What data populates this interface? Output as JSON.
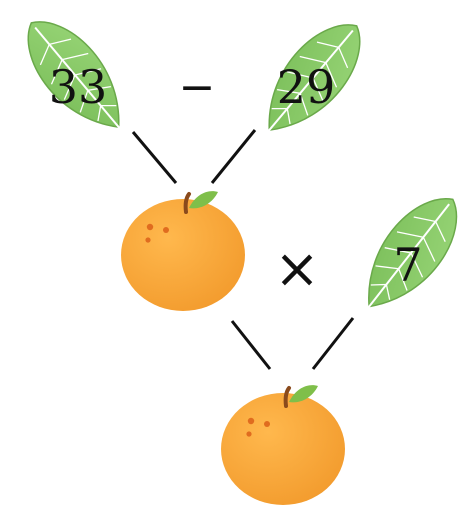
{
  "top_left_leaf": {
    "value": "33"
  },
  "top_operator": {
    "symbol": "−"
  },
  "top_right_leaf": {
    "value": "29"
  },
  "middle_operator": {
    "symbol": "×"
  },
  "middle_right_leaf": {
    "value": "7"
  },
  "colors": {
    "leaf_fill": "#8ccb6a",
    "leaf_vein": "#ffffff",
    "orange_fill": "#f6a233",
    "orange_spot": "#e06c1f",
    "stem": "#8a4a1c",
    "stem_leaf": "#7fbf4a",
    "connector_line": "#111111"
  }
}
